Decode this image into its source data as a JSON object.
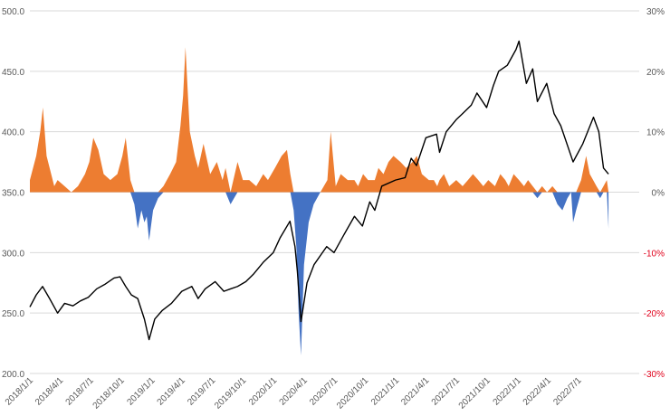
{
  "chart_data": {
    "type": "line",
    "title": "",
    "xlabel": "",
    "ylabel": "",
    "ylim": [
      200,
      500
    ],
    "y_ticks": [
      200,
      250,
      300,
      350,
      400,
      450,
      500
    ],
    "y_tick_labels": [
      "200.0",
      "250.0",
      "300.0",
      "350.0",
      "400.0",
      "450.0",
      "500.0"
    ],
    "y2lim": [
      -0.3,
      0.3
    ],
    "y2_ticks": [
      -0.3,
      -0.2,
      -0.1,
      0,
      0.1,
      0.2,
      0.3
    ],
    "y2_tick_labels": [
      "-30%",
      "-20%",
      "-10%",
      "0%",
      "10%",
      "20%",
      "30%"
    ],
    "x_tick_labels": [
      "2018/1/1",
      "2018/4/1",
      "2018/7/1",
      "2018/10/1",
      "2019/1/1",
      "2019/4/1",
      "2019/7/1",
      "2019/10/1",
      "2020/1/1",
      "2020/4/1",
      "2020/7/1",
      "2020/10/1",
      "2021/1/1",
      "2021/4/1",
      "2021/7/1",
      "2021/10/1",
      "2022/1/1",
      "2022/4/1",
      "2022/7/1"
    ],
    "grid": true,
    "legend": "none",
    "colors": {
      "line": "#000000",
      "positive_area": "#ed7d31",
      "negative_area": "#4472c4",
      "negative_tick_label": "#e0001b",
      "tick_label": "#595959",
      "grid": "#d9d9d9"
    },
    "series": [
      {
        "type": "line",
        "axis": "left",
        "x": [
          "2018-01-01",
          "2018-01-20",
          "2018-02-08",
          "2018-03-01",
          "2018-03-25",
          "2018-04-15",
          "2018-05-10",
          "2018-06-01",
          "2018-06-25",
          "2018-07-20",
          "2018-08-15",
          "2018-09-10",
          "2018-09-28",
          "2018-10-15",
          "2018-11-01",
          "2018-11-20",
          "2018-12-10",
          "2018-12-24",
          "2019-01-10",
          "2019-02-01",
          "2019-03-01",
          "2019-04-01",
          "2019-05-01",
          "2019-05-20",
          "2019-06-10",
          "2019-07-10",
          "2019-08-05",
          "2019-08-25",
          "2019-09-15",
          "2019-10-10",
          "2019-11-01",
          "2019-12-01",
          "2019-12-31",
          "2020-01-20",
          "2020-02-19",
          "2020-03-05",
          "2020-03-12",
          "2020-03-23",
          "2020-04-10",
          "2020-05-01",
          "2020-06-08",
          "2020-06-30",
          "2020-07-30",
          "2020-08-30",
          "2020-09-23",
          "2020-10-15",
          "2020-10-30",
          "2020-11-20",
          "2020-12-31",
          "2021-01-29",
          "2021-02-16",
          "2021-03-04",
          "2021-04-01",
          "2021-05-03",
          "2021-05-12",
          "2021-06-01",
          "2021-07-01",
          "2021-07-20",
          "2021-08-15",
          "2021-09-01",
          "2021-09-30",
          "2021-10-20",
          "2021-11-05",
          "2021-12-01",
          "2021-12-27",
          "2022-01-05",
          "2022-01-27",
          "2022-02-15",
          "2022-03-01",
          "2022-03-29",
          "2022-04-20",
          "2022-05-10",
          "2022-06-16",
          "2022-07-15",
          "2022-08-16",
          "2022-09-01",
          "2022-09-15",
          "2022-09-30"
        ],
        "values": [
          255,
          265,
          272,
          262,
          250,
          258,
          256,
          260,
          263,
          270,
          274,
          279,
          280,
          272,
          265,
          262,
          245,
          228,
          245,
          252,
          258,
          268,
          272,
          262,
          270,
          276,
          268,
          270,
          272,
          276,
          282,
          292,
          300,
          312,
          326,
          305,
          285,
          243,
          275,
          290,
          305,
          300,
          315,
          330,
          322,
          342,
          335,
          355,
          360,
          362,
          378,
          372,
          395,
          398,
          383,
          400,
          410,
          415,
          422,
          432,
          420,
          438,
          450,
          455,
          468,
          475,
          440,
          452,
          425,
          440,
          415,
          405,
          375,
          390,
          412,
          400,
          370,
          365
        ]
      },
      {
        "type": "area",
        "axis": "right",
        "name": "",
        "x": [
          "2018-01-01",
          "2018-01-20",
          "2018-02-01",
          "2018-02-09",
          "2018-02-20",
          "2018-03-15",
          "2018-03-25",
          "2018-04-15",
          "2018-05-05",
          "2018-05-25",
          "2018-06-15",
          "2018-06-28",
          "2018-07-10",
          "2018-07-25",
          "2018-08-10",
          "2018-08-30",
          "2018-09-20",
          "2018-10-05",
          "2018-10-15",
          "2018-10-29",
          "2018-11-10",
          "2018-11-20",
          "2018-12-01",
          "2018-12-10",
          "2018-12-17",
          "2018-12-24",
          "2019-01-05",
          "2019-01-20",
          "2019-02-05",
          "2019-02-25",
          "2019-03-15",
          "2019-03-28",
          "2019-04-05",
          "2019-04-12",
          "2019-04-25",
          "2019-05-10",
          "2019-05-20",
          "2019-06-05",
          "2019-06-25",
          "2019-07-15",
          "2019-08-01",
          "2019-08-10",
          "2019-08-25",
          "2019-09-15",
          "2019-10-01",
          "2019-10-20",
          "2019-11-10",
          "2019-12-01",
          "2019-12-15",
          "2020-01-05",
          "2020-01-25",
          "2020-02-10",
          "2020-02-20",
          "2020-03-01",
          "2020-03-09",
          "2020-03-16",
          "2020-03-23",
          "2020-04-01",
          "2020-04-15",
          "2020-04-30",
          "2020-05-20",
          "2020-06-10",
          "2020-06-20",
          "2020-06-25",
          "2020-07-05",
          "2020-07-20",
          "2020-08-10",
          "2020-08-30",
          "2020-09-10",
          "2020-09-25",
          "2020-10-10",
          "2020-10-30",
          "2020-11-10",
          "2020-11-25",
          "2020-12-10",
          "2020-12-25",
          "2021-01-15",
          "2021-02-01",
          "2021-02-20",
          "2021-03-05",
          "2021-03-20",
          "2021-04-10",
          "2021-04-25",
          "2021-05-05",
          "2021-05-12",
          "2021-05-25",
          "2021-06-10",
          "2021-07-01",
          "2021-07-20",
          "2021-08-05",
          "2021-08-20",
          "2021-09-05",
          "2021-09-20",
          "2021-10-05",
          "2021-10-25",
          "2021-11-10",
          "2021-11-25",
          "2021-12-05",
          "2021-12-20",
          "2022-01-05",
          "2022-01-20",
          "2022-02-01",
          "2022-02-15",
          "2022-03-01",
          "2022-03-15",
          "2022-03-30",
          "2022-04-15",
          "2022-04-30",
          "2022-05-15",
          "2022-05-30",
          "2022-06-10",
          "2022-06-16",
          "2022-06-25",
          "2022-07-10",
          "2022-07-25",
          "2022-08-05",
          "2022-08-15",
          "2022-08-25",
          "2022-09-05",
          "2022-09-15",
          "2022-09-25",
          "2022-09-30"
        ],
        "values": [
          0.02,
          0.06,
          0.1,
          0.14,
          0.06,
          0.01,
          0.02,
          0.01,
          0.0,
          0.01,
          0.03,
          0.05,
          0.09,
          0.07,
          0.03,
          0.02,
          0.03,
          0.06,
          0.09,
          0.02,
          -0.02,
          -0.06,
          -0.03,
          -0.05,
          -0.04,
          -0.08,
          -0.03,
          -0.01,
          0.01,
          0.03,
          0.05,
          0.11,
          0.16,
          0.24,
          0.1,
          0.06,
          0.04,
          0.08,
          0.03,
          0.05,
          0.02,
          0.04,
          -0.02,
          0.05,
          0.02,
          0.02,
          0.01,
          0.03,
          0.02,
          0.04,
          0.06,
          0.07,
          0.03,
          -0.03,
          -0.09,
          -0.2,
          -0.27,
          -0.12,
          -0.05,
          -0.02,
          0.0,
          0.02,
          0.1,
          0.07,
          0.01,
          0.03,
          0.02,
          0.02,
          0.01,
          0.03,
          0.02,
          0.02,
          0.04,
          0.03,
          0.05,
          0.06,
          0.05,
          0.04,
          0.05,
          0.06,
          0.03,
          0.02,
          0.02,
          0.01,
          0.02,
          0.03,
          0.01,
          0.02,
          0.01,
          0.02,
          0.03,
          0.02,
          0.01,
          0.02,
          0.01,
          0.03,
          0.02,
          0.01,
          0.03,
          0.02,
          0.01,
          0.02,
          0.01,
          -0.01,
          0.01,
          0.0,
          0.01,
          -0.02,
          -0.03,
          -0.01,
          0.0,
          -0.05,
          -0.03,
          0.02,
          0.06,
          0.03,
          0.02,
          0.01,
          -0.01,
          0.01,
          0.02,
          -0.06
        ]
      }
    ]
  }
}
